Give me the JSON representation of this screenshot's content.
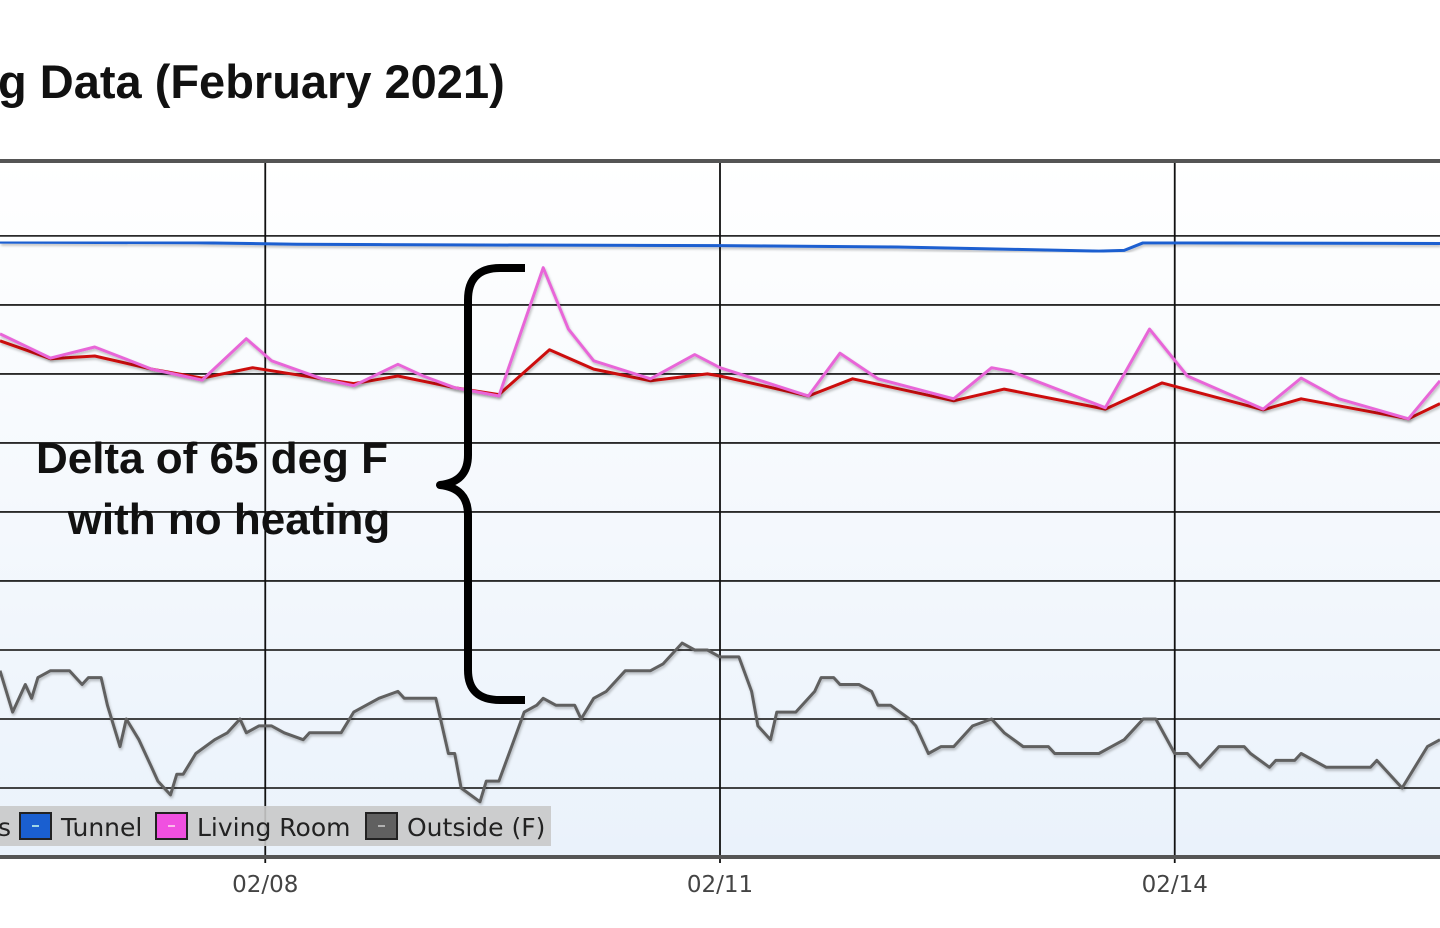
{
  "chart_data": {
    "type": "line",
    "title": "g Data (February 2021)",
    "xlabel": "",
    "ylabel": "",
    "x_format": "MM/DD HH:MM",
    "xlim": [
      "02/06 06:00",
      "02/15 18:00"
    ],
    "ylim": [
      -10,
      91
    ],
    "y_gridlines": [
      0,
      10,
      20,
      30,
      40,
      50,
      60,
      70,
      80
    ],
    "x_ticks": [
      {
        "x": "02/08 00:00",
        "label": "02/08"
      },
      {
        "x": "02/11 00:00",
        "label": "02/11"
      },
      {
        "x": "02/14 00:00",
        "label": "02/14"
      }
    ],
    "grid": true,
    "legend": {
      "placement": "bottom-left",
      "partial_label": "s",
      "entries": [
        "Tunnel",
        "Living Room",
        "Outside (F)"
      ]
    },
    "annotation": {
      "lines": [
        "Delta of 65 deg F",
        "with no heating"
      ],
      "bracket": "curly-brace"
    },
    "series": [
      {
        "color": "#cc1111",
        "points": [
          [
            "02/06 06:00",
            64.8
          ],
          [
            "02/06 14:00",
            62.2
          ],
          [
            "02/06 21:00",
            62.6
          ],
          [
            "02/07 06:00",
            60.7
          ],
          [
            "02/07 14:00",
            59.4
          ],
          [
            "02/07 22:00",
            60.9
          ],
          [
            "02/08 09:00",
            59.3
          ],
          [
            "02/08 14:00",
            58.6
          ],
          [
            "02/08 21:00",
            59.7
          ],
          [
            "02/09 06:00",
            58.0
          ],
          [
            "02/09 13:00",
            57.0
          ],
          [
            "02/09 21:00",
            63.5
          ],
          [
            "02/10 04:00",
            60.7
          ],
          [
            "02/10 13:00",
            59.0
          ],
          [
            "02/10 22:00",
            60.0
          ],
          [
            "02/11 00:00",
            59.7
          ],
          [
            "02/11 14:00",
            56.8
          ],
          [
            "02/11 21:00",
            59.3
          ],
          [
            "02/12 13:00",
            56.1
          ],
          [
            "02/12 21:00",
            57.8
          ],
          [
            "02/13 13:00",
            54.9
          ],
          [
            "02/13 22:00",
            58.7
          ],
          [
            "02/14 14:00",
            54.8
          ],
          [
            "02/14 20:00",
            56.4
          ],
          [
            "02/15 13:00",
            53.5
          ],
          [
            "02/15 18:00",
            55.7
          ]
        ]
      },
      {
        "name": "Tunnel",
        "color": "#1a5fd0",
        "points": [
          [
            "02/06 06:00",
            79.1
          ],
          [
            "02/07 13:00",
            79.0
          ],
          [
            "02/08 05:00",
            78.8
          ],
          [
            "02/09 05:00",
            78.7
          ],
          [
            "02/11 00:00",
            78.6
          ],
          [
            "02/12 04:00",
            78.4
          ],
          [
            "02/13 12:00",
            77.8
          ],
          [
            "02/13 16:00",
            77.9
          ],
          [
            "02/13 19:00",
            79.0
          ],
          [
            "02/15 18:00",
            78.9
          ]
        ]
      },
      {
        "name": "Living Room",
        "color": "#e866d8",
        "points": [
          [
            "02/06 06:00",
            65.8
          ],
          [
            "02/06 14:00",
            62.3
          ],
          [
            "02/06 21:00",
            63.9
          ],
          [
            "02/07 06:00",
            60.7
          ],
          [
            "02/07 14:00",
            59.1
          ],
          [
            "02/07 21:00",
            65.1
          ],
          [
            "02/08 01:00",
            61.9
          ],
          [
            "02/08 09:00",
            59.3
          ],
          [
            "02/08 14:00",
            58.3
          ],
          [
            "02/08 21:00",
            61.4
          ],
          [
            "02/09 01:00",
            59.7
          ],
          [
            "02/09 06:00",
            58.0
          ],
          [
            "02/09 13:00",
            56.8
          ],
          [
            "02/09 20:00",
            75.4
          ],
          [
            "02/10 00:00",
            66.5
          ],
          [
            "02/10 04:00",
            61.9
          ],
          [
            "02/10 13:00",
            59.3
          ],
          [
            "02/10 20:00",
            62.8
          ],
          [
            "02/11 00:00",
            60.9
          ],
          [
            "02/11 14:00",
            56.8
          ],
          [
            "02/11 19:00",
            63.0
          ],
          [
            "02/12 01:00",
            59.3
          ],
          [
            "02/12 13:00",
            56.4
          ],
          [
            "02/12 19:00",
            60.9
          ],
          [
            "02/12 22:00",
            60.4
          ],
          [
            "02/13 13:00",
            55.1
          ],
          [
            "02/13 20:00",
            66.5
          ],
          [
            "02/14 02:00",
            59.7
          ],
          [
            "02/14 14:00",
            54.9
          ],
          [
            "02/14 20:00",
            59.4
          ],
          [
            "02/15 02:00",
            56.4
          ],
          [
            "02/15 13:00",
            53.5
          ],
          [
            "02/15 18:00",
            59.0
          ]
        ]
      },
      {
        "name": "Outside (F)",
        "color": "#606060",
        "points": [
          [
            "02/06 06:00",
            17
          ],
          [
            "02/06 08:00",
            11
          ],
          [
            "02/06 10:00",
            15
          ],
          [
            "02/06 11:00",
            13
          ],
          [
            "02/06 12:00",
            16
          ],
          [
            "02/06 14:00",
            17
          ],
          [
            "02/06 17:00",
            17
          ],
          [
            "02/06 19:00",
            15
          ],
          [
            "02/06 20:00",
            16
          ],
          [
            "02/06 22:00",
            16
          ],
          [
            "02/06 23:00",
            12
          ],
          [
            "02/07 01:00",
            6
          ],
          [
            "02/07 02:00",
            10
          ],
          [
            "02/07 04:00",
            7
          ],
          [
            "02/07 06:00",
            3
          ],
          [
            "02/07 07:00",
            1
          ],
          [
            "02/07 09:00",
            -1
          ],
          [
            "02/07 10:00",
            2
          ],
          [
            "02/07 11:00",
            2
          ],
          [
            "02/07 13:00",
            5
          ],
          [
            "02/07 16:00",
            7
          ],
          [
            "02/07 18:00",
            8
          ],
          [
            "02/07 20:00",
            10
          ],
          [
            "02/07 21:00",
            8
          ],
          [
            "02/07 23:00",
            9
          ],
          [
            "02/08 01:00",
            9
          ],
          [
            "02/08 03:00",
            8
          ],
          [
            "02/08 06:00",
            7
          ],
          [
            "02/08 07:00",
            8
          ],
          [
            "02/08 12:00",
            8
          ],
          [
            "02/08 14:00",
            11
          ],
          [
            "02/08 18:00",
            13
          ],
          [
            "02/08 21:00",
            14
          ],
          [
            "02/08 22:00",
            13
          ],
          [
            "02/09 03:00",
            13
          ],
          [
            "02/09 05:00",
            5
          ],
          [
            "02/09 06:00",
            5
          ],
          [
            "02/09 07:00",
            0
          ],
          [
            "02/09 10:00",
            -2
          ],
          [
            "02/09 11:00",
            1
          ],
          [
            "02/09 13:00",
            1
          ],
          [
            "02/09 15:00",
            6
          ],
          [
            "02/09 17:00",
            11
          ],
          [
            "02/09 19:00",
            12
          ],
          [
            "02/09 20:00",
            13
          ],
          [
            "02/09 22:00",
            12
          ],
          [
            "02/10 01:00",
            12
          ],
          [
            "02/10 02:00",
            10
          ],
          [
            "02/10 04:00",
            13
          ],
          [
            "02/10 06:00",
            14
          ],
          [
            "02/10 09:00",
            17
          ],
          [
            "02/10 13:00",
            17
          ],
          [
            "02/10 15:00",
            18
          ],
          [
            "02/10 18:00",
            21
          ],
          [
            "02/10 20:00",
            20
          ],
          [
            "02/10 22:00",
            20
          ],
          [
            "02/11 00:00",
            19
          ],
          [
            "02/11 03:00",
            19
          ],
          [
            "02/11 05:00",
            14
          ],
          [
            "02/11 06:00",
            9
          ],
          [
            "02/11 08:00",
            7
          ],
          [
            "02/11 09:00",
            11
          ],
          [
            "02/11 12:00",
            11
          ],
          [
            "02/11 15:00",
            14
          ],
          [
            "02/11 16:00",
            16
          ],
          [
            "02/11 18:00",
            16
          ],
          [
            "02/11 19:00",
            15
          ],
          [
            "02/11 22:00",
            15
          ],
          [
            "02/12 00:00",
            14
          ],
          [
            "02/12 01:00",
            12
          ],
          [
            "02/12 03:00",
            12
          ],
          [
            "02/12 06:00",
            10
          ],
          [
            "02/12 07:00",
            9
          ],
          [
            "02/12 09:00",
            5
          ],
          [
            "02/12 11:00",
            6
          ],
          [
            "02/12 13:00",
            6
          ],
          [
            "02/12 16:00",
            9
          ],
          [
            "02/12 19:00",
            10
          ],
          [
            "02/12 21:00",
            8
          ],
          [
            "02/13 00:00",
            6
          ],
          [
            "02/13 04:00",
            6
          ],
          [
            "02/13 05:00",
            5
          ],
          [
            "02/13 12:00",
            5
          ],
          [
            "02/13 14:00",
            6
          ],
          [
            "02/13 16:00",
            7
          ],
          [
            "02/13 19:00",
            10
          ],
          [
            "02/13 21:00",
            10
          ],
          [
            "02/14 00:00",
            5
          ],
          [
            "02/14 02:00",
            5
          ],
          [
            "02/14 04:00",
            3
          ],
          [
            "02/14 07:00",
            6
          ],
          [
            "02/14 11:00",
            6
          ],
          [
            "02/14 12:00",
            5
          ],
          [
            "02/14 15:00",
            3
          ],
          [
            "02/14 16:00",
            4
          ],
          [
            "02/14 19:00",
            4
          ],
          [
            "02/14 20:00",
            5
          ],
          [
            "02/15 00:00",
            3
          ],
          [
            "02/15 07:00",
            3
          ],
          [
            "02/15 08:00",
            4
          ],
          [
            "02/15 12:00",
            0
          ],
          [
            "02/15 16:00",
            6
          ],
          [
            "02/15 18:00",
            7
          ]
        ]
      }
    ]
  }
}
